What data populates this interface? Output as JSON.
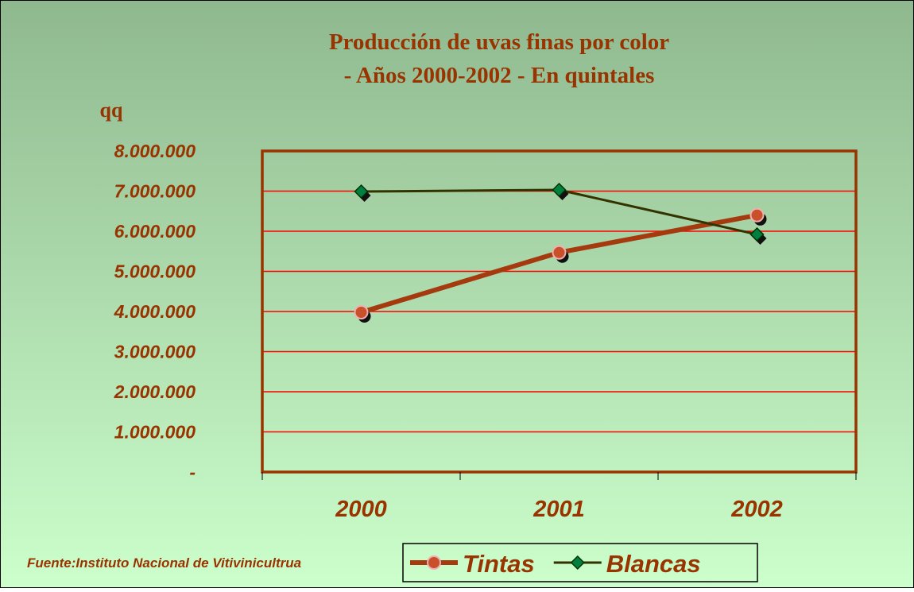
{
  "chart_data": {
    "type": "line",
    "title": [
      "Producción de uvas finas por color",
      "- Años 2000-2002 - En quintales"
    ],
    "y_label": "qq",
    "source": "Fuente:Instituto Nacional de Vitivinicultrua",
    "categories": [
      "2000",
      "2001",
      "2002"
    ],
    "series": [
      {
        "name": "Tintas",
        "color": "#a63a0f",
        "marker": "circle",
        "marker_color": "#c8502a",
        "values": [
          3980000,
          5470000,
          6400000
        ]
      },
      {
        "name": "Blancas",
        "color": "#333300",
        "marker": "diamond",
        "marker_color": "#008040",
        "values": [
          6990000,
          7030000,
          5920000
        ]
      }
    ],
    "ylim": [
      0,
      8000000
    ],
    "yticks": [
      {
        "value": 0,
        "label": "-"
      },
      {
        "value": 1000000,
        "label": "1.000.000"
      },
      {
        "value": 2000000,
        "label": "2.000.000"
      },
      {
        "value": 3000000,
        "label": "3.000.000"
      },
      {
        "value": 4000000,
        "label": "4.000.000"
      },
      {
        "value": 5000000,
        "label": "5.000.000"
      },
      {
        "value": 6000000,
        "label": "6.000.000"
      },
      {
        "value": 7000000,
        "label": "7.000.000"
      },
      {
        "value": 8000000,
        "label": "8.000.000"
      }
    ],
    "grid": true,
    "grid_color": "#ff0000",
    "legend": "bottom"
  }
}
